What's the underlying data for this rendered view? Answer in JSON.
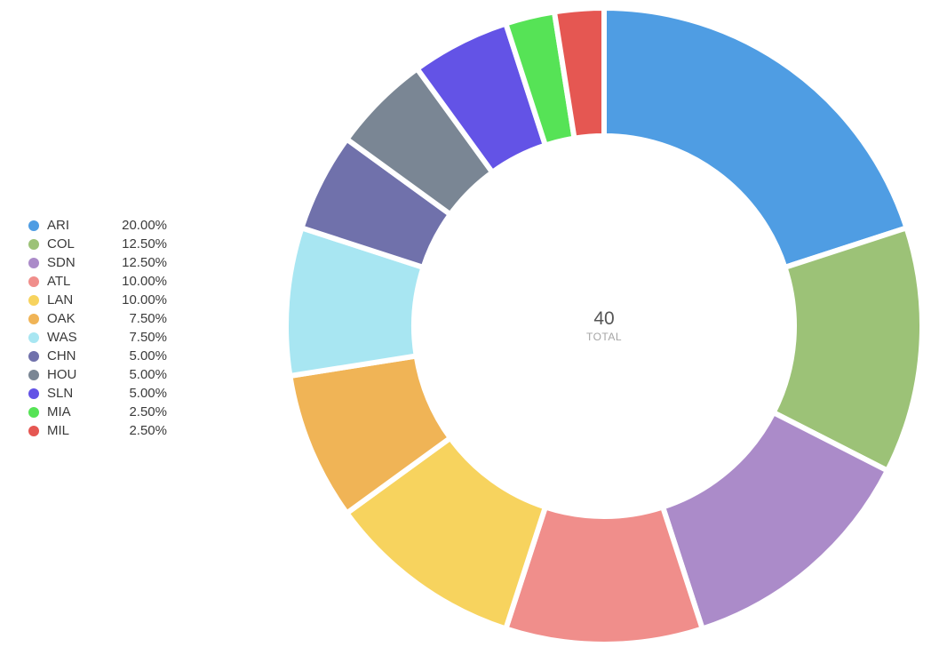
{
  "chart_data": {
    "type": "pie",
    "donut": true,
    "legend_position": "left",
    "center": {
      "value": "40",
      "label": "TOTAL"
    },
    "slices": [
      {
        "label": "ARI",
        "percent_label": "20.00%",
        "value": 20.0,
        "color": "#4f9de3"
      },
      {
        "label": "COL",
        "percent_label": "12.50%",
        "value": 12.5,
        "color": "#9cc277"
      },
      {
        "label": "SDN",
        "percent_label": "12.50%",
        "value": 12.5,
        "color": "#ab8bc9"
      },
      {
        "label": "ATL",
        "percent_label": "10.00%",
        "value": 10.0,
        "color": "#f08e8b"
      },
      {
        "label": "LAN",
        "percent_label": "10.00%",
        "value": 10.0,
        "color": "#f7d35e"
      },
      {
        "label": "OAK",
        "percent_label": "7.50%",
        "value": 7.5,
        "color": "#f0b456"
      },
      {
        "label": "WAS",
        "percent_label": "7.50%",
        "value": 7.5,
        "color": "#a8e6f2"
      },
      {
        "label": "CHN",
        "percent_label": "5.00%",
        "value": 5.0,
        "color": "#7071ab"
      },
      {
        "label": "HOU",
        "percent_label": "5.00%",
        "value": 5.0,
        "color": "#7a8694"
      },
      {
        "label": "SLN",
        "percent_label": "5.00%",
        "value": 5.0,
        "color": "#6353e6"
      },
      {
        "label": "MIA",
        "percent_label": "2.50%",
        "value": 2.5,
        "color": "#56e356"
      },
      {
        "label": "MIL",
        "percent_label": "2.50%",
        "value": 2.5,
        "color": "#e55752"
      }
    ]
  }
}
